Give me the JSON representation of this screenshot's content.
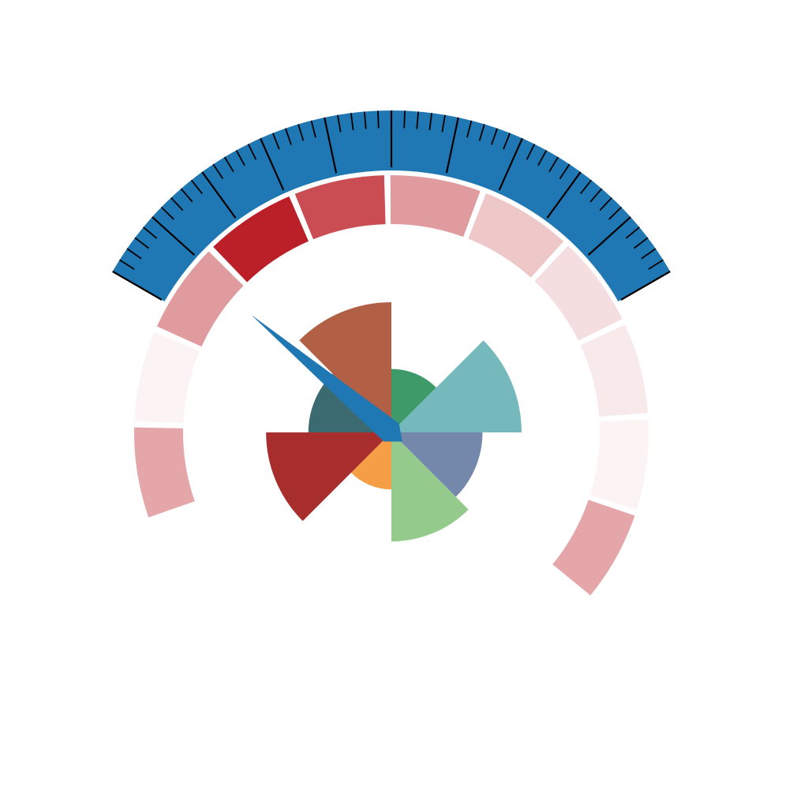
{
  "chart_data": [
    {
      "type": "gauge",
      "scale": {
        "major_ticks": 11,
        "minor_per_major": 5,
        "color": "#1f77b4",
        "tick_color": "#000000"
      },
      "bands": {
        "values": [
          0.4,
          0.05,
          0.45,
          1.0,
          0.8,
          0.45,
          0.25,
          0.15,
          0.1,
          0.05,
          0.4
        ],
        "color": "#bb2028"
      },
      "needle": {
        "value": 0.25,
        "color": "#1f77b4"
      }
    },
    {
      "type": "rose",
      "series": [
        {
          "value": 78,
          "color": "#3e9a68"
        },
        {
          "value": 160,
          "color": "#75b9bc"
        },
        {
          "value": 112,
          "color": "#7488ab"
        },
        {
          "value": 134,
          "color": "#95ca8d"
        },
        {
          "value": 70,
          "color": "#f59e45"
        },
        {
          "value": 154,
          "color": "#a82e2d"
        },
        {
          "value": 102,
          "color": "#3b6a70"
        },
        {
          "value": 160,
          "color": "#b16045"
        }
      ]
    }
  ]
}
